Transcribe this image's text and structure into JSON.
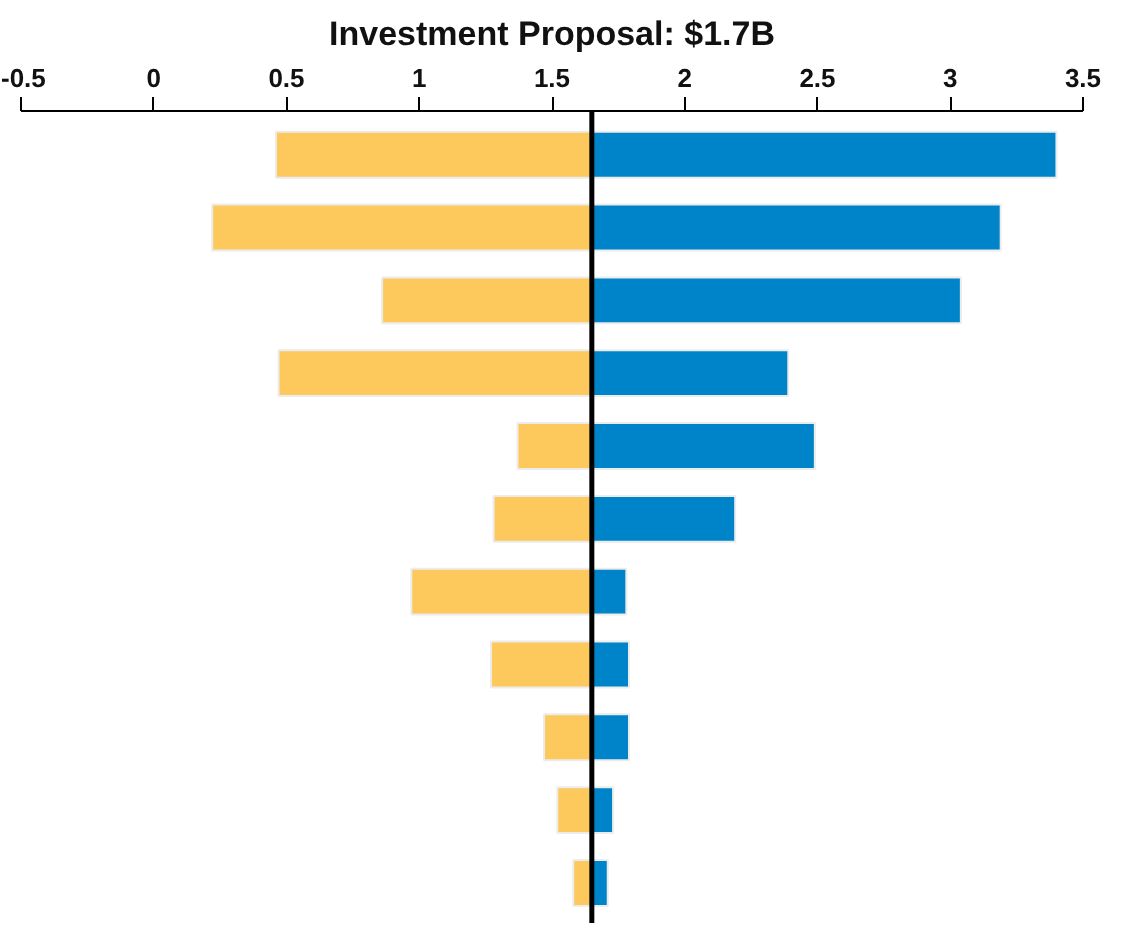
{
  "chart_data": {
    "type": "bar",
    "orientation": "horizontal",
    "title": "Investment Proposal: $1.7B",
    "categories": [
      null,
      null,
      null,
      null,
      null,
      null,
      null,
      null,
      null,
      null,
      null
    ],
    "series": [
      {
        "color": "#fdc95d",
        "base": [
          0.46,
          0.22,
          0.86,
          0.47,
          1.37,
          1.28,
          0.97,
          1.27,
          1.47,
          1.52,
          1.58
        ],
        "values": [
          1.19,
          1.43,
          0.79,
          1.18,
          0.28,
          0.37,
          0.68,
          0.38,
          0.18,
          0.13,
          0.07
        ]
      },
      {
        "color": "#0084c9",
        "base": [
          1.65,
          1.65,
          1.65,
          1.65,
          1.65,
          1.65,
          1.65,
          1.65,
          1.65,
          1.65,
          1.65
        ],
        "values": [
          1.75,
          1.54,
          1.39,
          0.74,
          0.84,
          0.54,
          0.13,
          0.14,
          0.14,
          0.08,
          0.06
        ]
      }
    ],
    "xlim": [
      -0.5,
      3.5
    ],
    "xticks": [
      {
        "value": -0.5,
        "label": "-0.5"
      },
      0,
      0.5,
      1,
      1.5,
      2,
      2.5,
      3,
      3.5
    ],
    "ref_lines": [
      {
        "axis": "x",
        "value": 1.65,
        "label": null,
        "color": "#000000"
      }
    ],
    "grid": false,
    "tick_labels": "x"
  }
}
